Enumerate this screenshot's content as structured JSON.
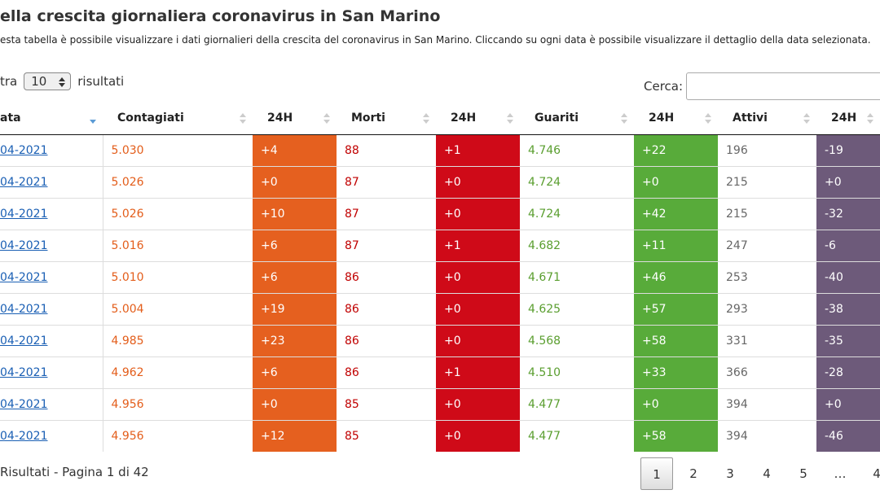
{
  "title": "ella crescita giornaliera coronavirus in San Marino",
  "subtitle": "esta tabella è possibile visualizzare i dati giornalieri della crescita del coronavirus in San Marino. Cliccando su ogni data è possibile visualizzare il dettaglio della data selezionata.",
  "length_menu": {
    "prefix": "tra",
    "value": "10",
    "suffix": "risultati"
  },
  "search_label": "Cerca:",
  "table": {
    "headers": [
      "ata",
      "Contagiati",
      "24H",
      "Morti",
      "24H",
      "Guariti",
      "24H",
      "Attivi",
      "24H"
    ],
    "rows": [
      [
        "04-2021",
        "5.030",
        "+4",
        "88",
        "+1",
        "4.746",
        "+22",
        "196",
        "-19"
      ],
      [
        "04-2021",
        "5.026",
        "+0",
        "87",
        "+0",
        "4.724",
        "+0",
        "215",
        "+0"
      ],
      [
        "04-2021",
        "5.026",
        "+10",
        "87",
        "+0",
        "4.724",
        "+42",
        "215",
        "-32"
      ],
      [
        "04-2021",
        "5.016",
        "+6",
        "87",
        "+1",
        "4.682",
        "+11",
        "247",
        "-6"
      ],
      [
        "04-2021",
        "5.010",
        "+6",
        "86",
        "+0",
        "4.671",
        "+46",
        "253",
        "-40"
      ],
      [
        "04-2021",
        "5.004",
        "+19",
        "86",
        "+0",
        "4.625",
        "+57",
        "293",
        "-38"
      ],
      [
        "04-2021",
        "4.985",
        "+23",
        "86",
        "+0",
        "4.568",
        "+58",
        "331",
        "-35"
      ],
      [
        "04-2021",
        "4.962",
        "+6",
        "86",
        "+1",
        "4.510",
        "+33",
        "366",
        "-28"
      ],
      [
        "04-2021",
        "4.956",
        "+0",
        "85",
        "+0",
        "4.477",
        "+0",
        "394",
        "+0"
      ],
      [
        "04-2021",
        "4.956",
        "+12",
        "85",
        "+0",
        "4.477",
        "+58",
        "394",
        "-46"
      ]
    ]
  },
  "info": "Risultati - Pagina 1 di 42",
  "pagination": [
    "1",
    "2",
    "3",
    "4",
    "5",
    "…",
    "4"
  ]
}
